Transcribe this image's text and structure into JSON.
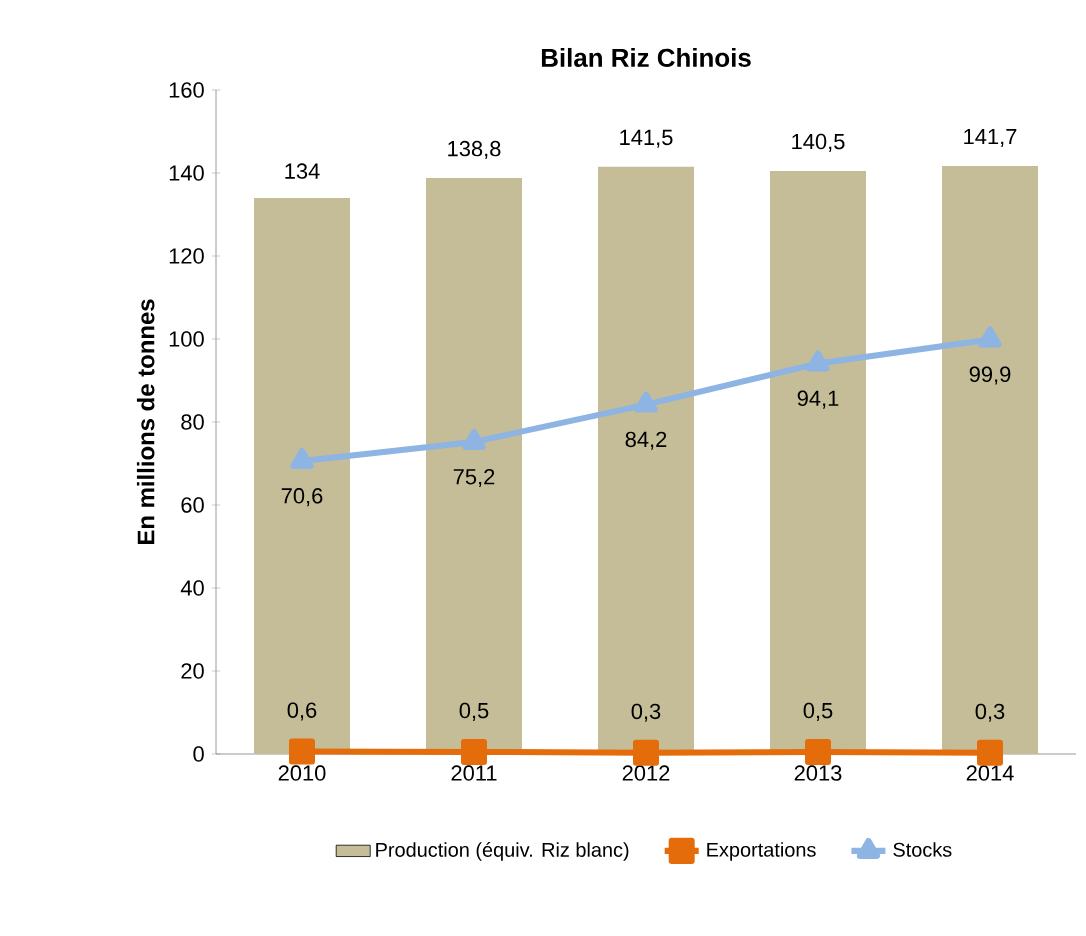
{
  "chart_data": {
    "type": "bar",
    "title": "Bilan Riz Chinois",
    "ylabel": "En millions de tonnes",
    "categories": [
      "2010",
      "2011",
      "2012",
      "2013",
      "2014"
    ],
    "ylim": [
      0,
      160
    ],
    "yticks": [
      0,
      20,
      40,
      60,
      80,
      100,
      120,
      140,
      160
    ],
    "legend": "bottom",
    "series": [
      {
        "name": "Production (équiv. Riz blanc)",
        "color": "#c4bd97",
        "values": [
          134,
          138.8,
          141.5,
          140.5,
          141.7
        ],
        "value_labels": [
          "134",
          "138,8",
          "141,5",
          "140,5",
          "141,7"
        ]
      },
      {
        "name": "Exportations",
        "type": "line",
        "color": "#e46c0a",
        "marker": "square",
        "values": [
          0.6,
          0.5,
          0.3,
          0.5,
          0.3
        ],
        "value_labels": [
          "0,6",
          "0,5",
          "0,3",
          "0,5",
          "0,3"
        ]
      },
      {
        "name": "Stocks",
        "type": "line",
        "color": "#8eb4e3",
        "marker": "triangle",
        "values": [
          70.6,
          75.2,
          84.2,
          94.1,
          99.9
        ],
        "value_labels": [
          "70,6",
          "75,2",
          "84,2",
          "94,1",
          "99,9"
        ]
      }
    ]
  }
}
